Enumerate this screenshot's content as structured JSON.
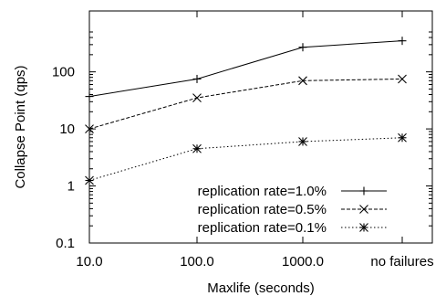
{
  "chart_data": {
    "type": "line",
    "xlabel": "Maxlife (seconds)",
    "ylabel": "Collapse Point (qps)",
    "y_scale": "log",
    "ylim": [
      0.1,
      500
    ],
    "grid": false,
    "legend_position": "bottom-right",
    "categories": [
      "10.0",
      "100.0",
      "1000.0",
      "no failures"
    ],
    "y_ticks": [
      {
        "value": 0.1,
        "label": "0.1"
      },
      {
        "value": 1,
        "label": "1"
      },
      {
        "value": 10,
        "label": "10"
      },
      {
        "value": 100,
        "label": "100"
      }
    ],
    "series": [
      {
        "name": "replication rate=1.0%",
        "marker": "plus",
        "dash": "",
        "values": [
          37,
          75,
          270,
          350
        ]
      },
      {
        "name": "replication rate=0.5%",
        "marker": "cross",
        "dash": "4,2",
        "values": [
          10,
          35,
          70,
          75
        ]
      },
      {
        "name": "replication rate=0.1%",
        "marker": "star",
        "dash": "1.5,2.5",
        "values": [
          1.25,
          4.5,
          6,
          7
        ]
      }
    ]
  }
}
